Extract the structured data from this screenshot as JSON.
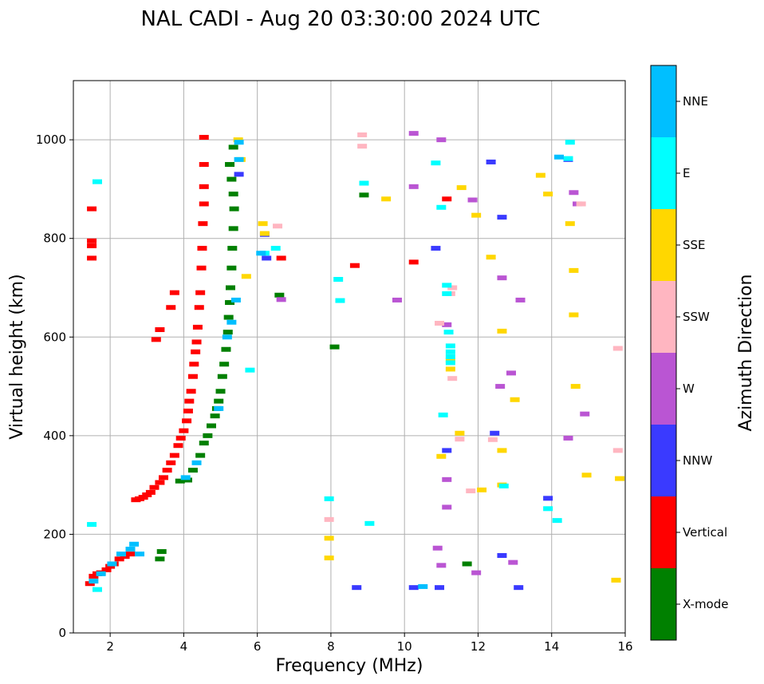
{
  "chart_data": {
    "type": "scatter",
    "title": "NAL CADI - Aug 20 03:30:00 2024 UTC",
    "xlabel": "Frequency (MHz)",
    "ylabel": "Virtual height (km)",
    "xlim": [
      1,
      16
    ],
    "ylim": [
      0,
      1120
    ],
    "xticks": [
      2,
      4,
      6,
      8,
      10,
      12,
      14,
      16
    ],
    "yticks": [
      0,
      200,
      400,
      600,
      800,
      1000
    ],
    "grid": true,
    "colorbar": {
      "title": "Azimuth Direction",
      "categories": [
        {
          "name": "NNE",
          "color": "#00bfff"
        },
        {
          "name": "E",
          "color": "#00ffff"
        },
        {
          "name": "SSE",
          "color": "#ffd700"
        },
        {
          "name": "SSW",
          "color": "#ffb6c1"
        },
        {
          "name": "W",
          "color": "#ba55d3"
        },
        {
          "name": "NNW",
          "color": "#3a3aff"
        },
        {
          "name": "Vertical",
          "color": "#ff0000"
        },
        {
          "name": "X-mode",
          "color": "#008000"
        }
      ]
    },
    "series": [
      {
        "name": "Vertical",
        "points": [
          [
            1.45,
            100
          ],
          [
            1.55,
            115
          ],
          [
            1.65,
            120
          ],
          [
            1.75,
            122
          ],
          [
            1.9,
            128
          ],
          [
            2.0,
            135
          ],
          [
            2.1,
            140
          ],
          [
            2.25,
            150
          ],
          [
            2.4,
            155
          ],
          [
            2.55,
            160
          ],
          [
            2.7,
            270
          ],
          [
            2.8,
            272
          ],
          [
            2.9,
            275
          ],
          [
            3.0,
            280
          ],
          [
            3.1,
            285
          ],
          [
            3.2,
            295
          ],
          [
            3.35,
            305
          ],
          [
            3.45,
            315
          ],
          [
            3.55,
            330
          ],
          [
            3.65,
            345
          ],
          [
            3.75,
            360
          ],
          [
            3.85,
            380
          ],
          [
            3.92,
            395
          ],
          [
            4.0,
            410
          ],
          [
            4.08,
            430
          ],
          [
            4.12,
            450
          ],
          [
            4.15,
            470
          ],
          [
            4.2,
            490
          ],
          [
            4.25,
            520
          ],
          [
            4.28,
            545
          ],
          [
            4.32,
            570
          ],
          [
            4.35,
            590
          ],
          [
            4.38,
            620
          ],
          [
            4.42,
            660
          ],
          [
            4.45,
            690
          ],
          [
            4.48,
            740
          ],
          [
            4.5,
            780
          ],
          [
            4.52,
            830
          ],
          [
            4.55,
            870
          ],
          [
            4.55,
            905
          ],
          [
            4.55,
            950
          ],
          [
            4.55,
            1005
          ],
          [
            1.5,
            760
          ],
          [
            1.5,
            785
          ],
          [
            1.5,
            795
          ],
          [
            1.5,
            860
          ],
          [
            3.25,
            595
          ],
          [
            3.35,
            615
          ],
          [
            3.65,
            660
          ],
          [
            3.75,
            690
          ],
          [
            6.65,
            760
          ],
          [
            8.65,
            745
          ],
          [
            10.25,
            752
          ],
          [
            11.15,
            880
          ]
        ]
      },
      {
        "name": "X-mode",
        "points": [
          [
            3.35,
            150
          ],
          [
            3.4,
            165
          ],
          [
            3.9,
            308
          ],
          [
            4.1,
            310
          ],
          [
            4.25,
            330
          ],
          [
            4.45,
            360
          ],
          [
            4.55,
            385
          ],
          [
            4.65,
            400
          ],
          [
            4.75,
            420
          ],
          [
            4.85,
            440
          ],
          [
            4.9,
            455
          ],
          [
            4.95,
            470
          ],
          [
            5.0,
            490
          ],
          [
            5.05,
            520
          ],
          [
            5.1,
            545
          ],
          [
            5.15,
            575
          ],
          [
            5.2,
            610
          ],
          [
            5.22,
            640
          ],
          [
            5.25,
            670
          ],
          [
            5.27,
            700
          ],
          [
            5.3,
            740
          ],
          [
            5.32,
            780
          ],
          [
            5.35,
            820
          ],
          [
            5.37,
            860
          ],
          [
            5.35,
            890
          ],
          [
            5.3,
            920
          ],
          [
            5.25,
            950
          ],
          [
            5.35,
            985
          ],
          [
            6.6,
            685
          ],
          [
            8.1,
            580
          ],
          [
            8.9,
            888
          ],
          [
            11.7,
            140
          ]
        ]
      },
      {
        "name": "NNW",
        "points": [
          [
            5.5,
            930
          ],
          [
            6.2,
            808
          ],
          [
            6.25,
            760
          ],
          [
            8.7,
            92
          ],
          [
            10.25,
            92
          ],
          [
            10.95,
            92
          ],
          [
            10.85,
            780
          ],
          [
            12.35,
            955
          ],
          [
            12.65,
            843
          ],
          [
            12.45,
            405
          ],
          [
            12.65,
            157
          ],
          [
            13.1,
            92
          ],
          [
            13.9,
            273
          ],
          [
            14.45,
            960
          ],
          [
            11.15,
            370
          ]
        ]
      },
      {
        "name": "W",
        "points": [
          [
            10.9,
            172
          ],
          [
            11.0,
            137
          ],
          [
            11.15,
            255
          ],
          [
            11.15,
            311
          ],
          [
            11.15,
            625
          ],
          [
            10.25,
            1013
          ],
          [
            10.25,
            905
          ],
          [
            9.8,
            675
          ],
          [
            11.0,
            1000
          ],
          [
            11.85,
            878
          ],
          [
            11.95,
            122
          ],
          [
            12.65,
            720
          ],
          [
            12.6,
            500
          ],
          [
            12.9,
            527
          ],
          [
            13.15,
            675
          ],
          [
            12.95,
            143
          ],
          [
            14.45,
            395
          ],
          [
            14.9,
            444
          ],
          [
            14.6,
            893
          ],
          [
            14.7,
            870
          ],
          [
            6.65,
            676
          ]
        ]
      },
      {
        "name": "SSW",
        "points": [
          [
            8.85,
            1010
          ],
          [
            8.85,
            987
          ],
          [
            11.3,
            700
          ],
          [
            11.25,
            688
          ],
          [
            10.95,
            628
          ],
          [
            11.3,
            516
          ],
          [
            11.5,
            393
          ],
          [
            12.4,
            392
          ],
          [
            14.8,
            870
          ],
          [
            15.8,
            577
          ],
          [
            15.8,
            370
          ],
          [
            11.8,
            288
          ],
          [
            7.95,
            230
          ],
          [
            6.55,
            825
          ]
        ]
      },
      {
        "name": "SSE",
        "points": [
          [
            5.48,
            1000
          ],
          [
            5.55,
            960
          ],
          [
            5.7,
            723
          ],
          [
            6.15,
            830
          ],
          [
            6.2,
            810
          ],
          [
            11.5,
            405
          ],
          [
            12.35,
            762
          ],
          [
            12.65,
            612
          ],
          [
            12.65,
            370
          ],
          [
            12.65,
            300
          ],
          [
            13.0,
            473
          ],
          [
            13.7,
            928
          ],
          [
            13.9,
            890
          ],
          [
            14.5,
            830
          ],
          [
            14.6,
            645
          ],
          [
            14.65,
            500
          ],
          [
            14.6,
            735
          ],
          [
            14.95,
            320
          ],
          [
            15.85,
            313
          ],
          [
            15.75,
            107
          ],
          [
            11.25,
            553
          ],
          [
            11.25,
            535
          ],
          [
            11.95,
            847
          ],
          [
            11.55,
            903
          ],
          [
            7.95,
            152
          ],
          [
            7.95,
            192
          ],
          [
            9.5,
            880
          ],
          [
            11.0,
            358
          ],
          [
            12.1,
            290
          ]
        ]
      },
      {
        "name": "E",
        "points": [
          [
            6.2,
            770
          ],
          [
            6.5,
            780
          ],
          [
            11.2,
            610
          ],
          [
            11.25,
            582
          ],
          [
            11.25,
            570
          ],
          [
            11.25,
            560
          ],
          [
            11.25,
            548
          ],
          [
            11.05,
            442
          ],
          [
            12.7,
            298
          ],
          [
            13.9,
            252
          ],
          [
            14.15,
            228
          ],
          [
            14.5,
            995
          ],
          [
            14.45,
            962
          ],
          [
            8.25,
            674
          ],
          [
            8.2,
            717
          ],
          [
            7.95,
            272
          ],
          [
            9.05,
            222
          ],
          [
            8.9,
            912
          ],
          [
            11.0,
            863
          ],
          [
            10.85,
            953
          ],
          [
            11.15,
            705
          ],
          [
            11.15,
            688
          ],
          [
            1.65,
            915
          ],
          [
            1.5,
            220
          ],
          [
            5.8,
            533
          ],
          [
            1.65,
            88
          ]
        ]
      },
      {
        "name": "NNE",
        "points": [
          [
            1.55,
            105
          ],
          [
            1.75,
            120
          ],
          [
            2.05,
            140
          ],
          [
            2.3,
            160
          ],
          [
            2.55,
            170
          ],
          [
            2.65,
            180
          ],
          [
            2.8,
            160
          ],
          [
            4.05,
            315
          ],
          [
            4.35,
            345
          ],
          [
            4.95,
            455
          ],
          [
            5.18,
            600
          ],
          [
            5.3,
            630
          ],
          [
            5.42,
            675
          ],
          [
            5.5,
            960
          ],
          [
            5.5,
            995
          ],
          [
            6.1,
            770
          ],
          [
            10.5,
            94
          ],
          [
            14.2,
            965
          ]
        ]
      }
    ]
  }
}
